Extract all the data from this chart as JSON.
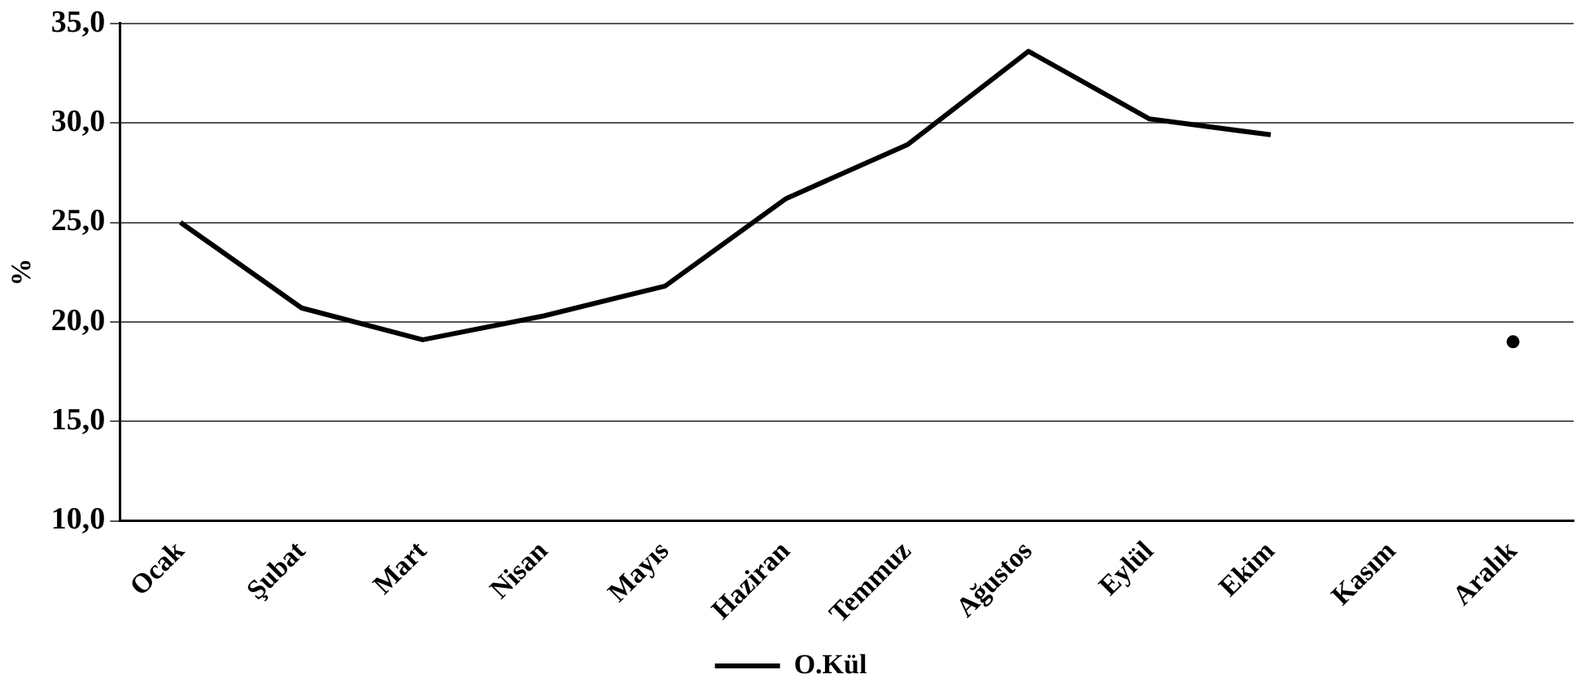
{
  "chart_data": {
    "type": "line",
    "ylabel": "%",
    "categories": [
      "Ocak",
      "Şubat",
      "Mart",
      "Nisan",
      "Mayıs",
      "Haziran",
      "Temmuz",
      "Ağustos",
      "Eylül",
      "Ekim",
      "Kasım",
      "Aralık"
    ],
    "series": [
      {
        "name": "O.Kül",
        "color": "#000000",
        "values": [
          25.0,
          20.7,
          19.1,
          20.3,
          21.8,
          26.2,
          28.9,
          33.6,
          30.2,
          29.4,
          null,
          19.0
        ]
      }
    ],
    "ylim": [
      10,
      35
    ],
    "yticks": [
      {
        "value": 10,
        "label": "10,0"
      },
      {
        "value": 15,
        "label": "15,0"
      },
      {
        "value": 20,
        "label": "20,0"
      },
      {
        "value": 25,
        "label": "25,0"
      },
      {
        "value": 30,
        "label": "30,0"
      },
      {
        "value": 35,
        "label": "35,0"
      }
    ],
    "grid": "y",
    "legend": "bottom",
    "marker": "none",
    "line_style": "solid"
  }
}
